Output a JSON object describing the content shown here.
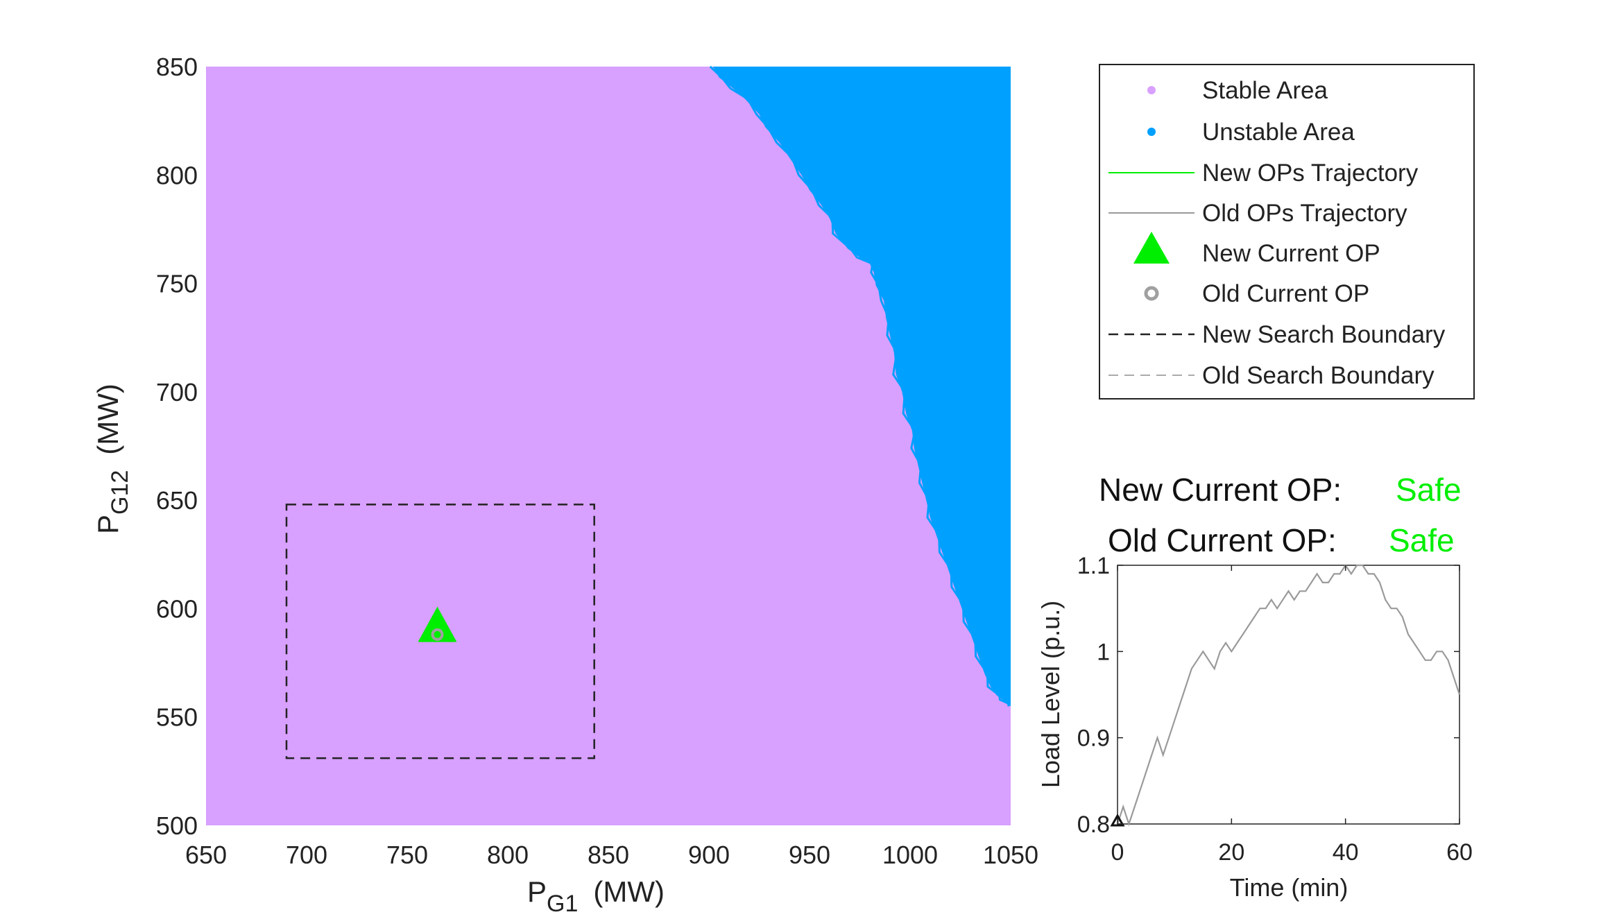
{
  "chart_data": [
    {
      "type": "scatter",
      "xlabel": "P",
      "xlabel_sub": "G1",
      "xlabel_unit": "(MW)",
      "ylabel": "P",
      "ylabel_sub": "G12",
      "ylabel_unit": "(MW)",
      "xlim": [
        650,
        1050
      ],
      "ylim": [
        500,
        850
      ],
      "xticks": [
        650,
        700,
        750,
        800,
        850,
        900,
        950,
        1000,
        1050
      ],
      "yticks": [
        500,
        550,
        600,
        650,
        700,
        750,
        800,
        850
      ],
      "grid": false,
      "colors": {
        "stable": "#d8a0ff",
        "unstable": "#00a0ff",
        "new_op": "#00ee00",
        "old_op": "#a0a0a0",
        "new_boundary": "#222222",
        "old_boundary": "#aaaaaa"
      },
      "stability_boundary": [
        [
          902,
          850
        ],
        [
          905,
          845
        ],
        [
          912,
          840
        ],
        [
          918,
          835
        ],
        [
          925,
          828
        ],
        [
          928,
          822
        ],
        [
          935,
          815
        ],
        [
          940,
          808
        ],
        [
          946,
          800
        ],
        [
          950,
          793
        ],
        [
          956,
          786
        ],
        [
          960,
          780
        ],
        [
          963,
          773
        ],
        [
          969,
          766
        ],
        [
          975,
          762
        ],
        [
          980,
          759
        ],
        [
          982,
          755
        ],
        [
          983,
          749
        ],
        [
          987,
          742
        ],
        [
          988,
          734
        ],
        [
          990,
          726
        ],
        [
          992,
          718
        ],
        [
          993,
          708
        ],
        [
          996,
          700
        ],
        [
          998,
          690
        ],
        [
          1001,
          682
        ],
        [
          1002,
          674
        ],
        [
          1004,
          666
        ],
        [
          1006,
          658
        ],
        [
          1008,
          650
        ],
        [
          1010,
          642
        ],
        [
          1013,
          634
        ],
        [
          1016,
          626
        ],
        [
          1019,
          618
        ],
        [
          1022,
          610
        ],
        [
          1025,
          602
        ],
        [
          1028,
          594
        ],
        [
          1031,
          586
        ],
        [
          1034,
          578
        ],
        [
          1037,
          570
        ],
        [
          1040,
          564
        ],
        [
          1043,
          560
        ],
        [
          1046,
          558
        ],
        [
          1048,
          556
        ],
        [
          1050,
          555
        ]
      ],
      "new_search_boundary": {
        "x": [
          690,
          843
        ],
        "y": [
          531,
          648
        ]
      },
      "new_current_op": {
        "x": 765,
        "y": 590
      },
      "old_current_op": {
        "x": 765,
        "y": 588
      },
      "legend": {
        "placement": "right",
        "entries": [
          {
            "label": "Stable Area",
            "marker": "dot-purple"
          },
          {
            "label": "Unstable Area",
            "marker": "dot-blue"
          },
          {
            "label": "New OPs Trajectory",
            "marker": "line-green"
          },
          {
            "label": "Old OPs Trajectory",
            "marker": "line-gray"
          },
          {
            "label": "New Current OP",
            "marker": "triangle-green"
          },
          {
            "label": "Old Current OP",
            "marker": "circle-gray"
          },
          {
            "label": "New Search Boundary",
            "marker": "dash-black"
          },
          {
            "label": "Old Search Boundary",
            "marker": "dash-gray"
          }
        ]
      }
    },
    {
      "type": "line",
      "xlabel": "Time (min)",
      "ylabel": "Load Level (p.u.)",
      "xlim": [
        0,
        60
      ],
      "ylim": [
        0.8,
        1.1
      ],
      "xticks": [
        "0",
        "20",
        "40",
        "60"
      ],
      "yticks": [
        "0.8",
        "0.9",
        "1",
        "1.1"
      ],
      "grid": false,
      "series": [
        {
          "x": [
            0,
            1,
            2,
            3,
            4,
            5,
            6,
            7,
            8,
            9,
            10,
            11,
            12,
            13,
            14,
            15,
            16,
            17,
            18,
            19,
            20,
            21,
            22,
            23,
            24,
            25,
            26,
            27,
            28,
            29,
            30,
            31,
            32,
            33,
            34,
            35,
            36,
            37,
            38,
            39,
            40,
            41,
            42,
            43,
            44,
            45,
            46,
            47,
            48,
            49,
            50,
            51,
            52,
            53,
            54,
            55,
            56,
            57,
            58,
            59,
            60
          ],
          "y": [
            0.8,
            0.82,
            0.8,
            0.82,
            0.84,
            0.86,
            0.88,
            0.9,
            0.88,
            0.9,
            0.92,
            0.94,
            0.96,
            0.98,
            0.99,
            1.0,
            0.99,
            0.98,
            1.0,
            1.01,
            1.0,
            1.01,
            1.02,
            1.03,
            1.04,
            1.05,
            1.05,
            1.06,
            1.05,
            1.06,
            1.07,
            1.06,
            1.07,
            1.07,
            1.08,
            1.09,
            1.08,
            1.08,
            1.09,
            1.09,
            1.1,
            1.09,
            1.1,
            1.1,
            1.09,
            1.09,
            1.08,
            1.06,
            1.05,
            1.05,
            1.04,
            1.02,
            1.01,
            1.0,
            0.99,
            0.99,
            1.0,
            1.0,
            0.99,
            0.97,
            0.95
          ]
        }
      ],
      "marker_start": {
        "x": 0,
        "y": 0.8
      }
    }
  ],
  "status": {
    "new_label": "New Current OP:",
    "new_value": "Safe",
    "old_label": "Old Current OP:",
    "old_value": "Safe",
    "value_color": "#00ee00"
  }
}
